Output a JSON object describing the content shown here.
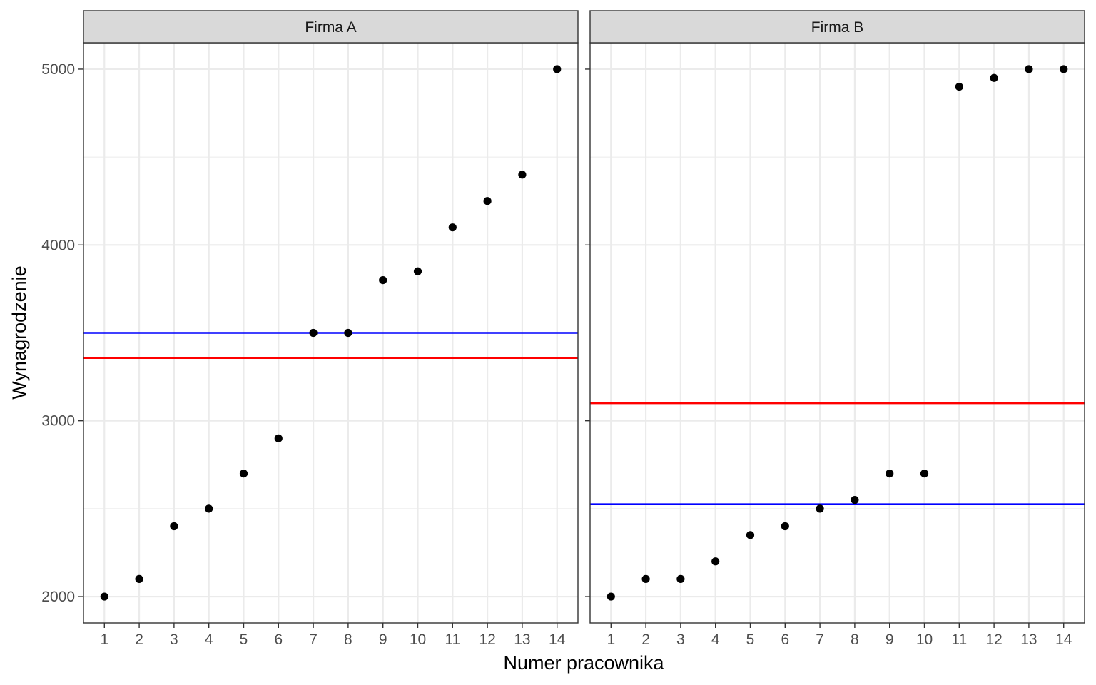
{
  "chart_data": {
    "type": "scatter",
    "xlabel": "Numer pracownika",
    "ylabel": "Wynagrodzenie",
    "x_ticks": [
      1,
      2,
      3,
      4,
      5,
      6,
      7,
      8,
      9,
      10,
      11,
      12,
      13,
      14
    ],
    "y_ticks": [
      2000,
      3000,
      4000,
      5000
    ],
    "xlim": [
      0.4,
      14.6
    ],
    "ylim": [
      1850,
      5150
    ],
    "grid": true,
    "colors": {
      "points": "#000000",
      "mean_line": "#ff0000",
      "median_line": "#0000ff",
      "strip_bg": "#d9d9d9",
      "grid": "#ebebeb"
    },
    "panels": [
      {
        "title": "Firma A",
        "x": [
          1,
          2,
          3,
          4,
          5,
          6,
          7,
          8,
          9,
          10,
          11,
          12,
          13,
          14
        ],
        "y": [
          2000,
          2100,
          2400,
          2500,
          2700,
          2900,
          3500,
          3500,
          3800,
          3850,
          4100,
          4250,
          4400,
          5000
        ],
        "hlines": [
          {
            "y": 3357,
            "color": "#ff0000"
          },
          {
            "y": 3500,
            "color": "#0000ff"
          }
        ]
      },
      {
        "title": "Firma B",
        "x": [
          1,
          2,
          3,
          4,
          5,
          6,
          7,
          8,
          9,
          10,
          11,
          12,
          13,
          14
        ],
        "y": [
          2000,
          2100,
          2100,
          2200,
          2350,
          2400,
          2500,
          2550,
          2700,
          2700,
          4900,
          4950,
          5000,
          5000
        ],
        "hlines": [
          {
            "y": 3100,
            "color": "#ff0000"
          },
          {
            "y": 2525,
            "color": "#0000ff"
          }
        ]
      }
    ]
  }
}
